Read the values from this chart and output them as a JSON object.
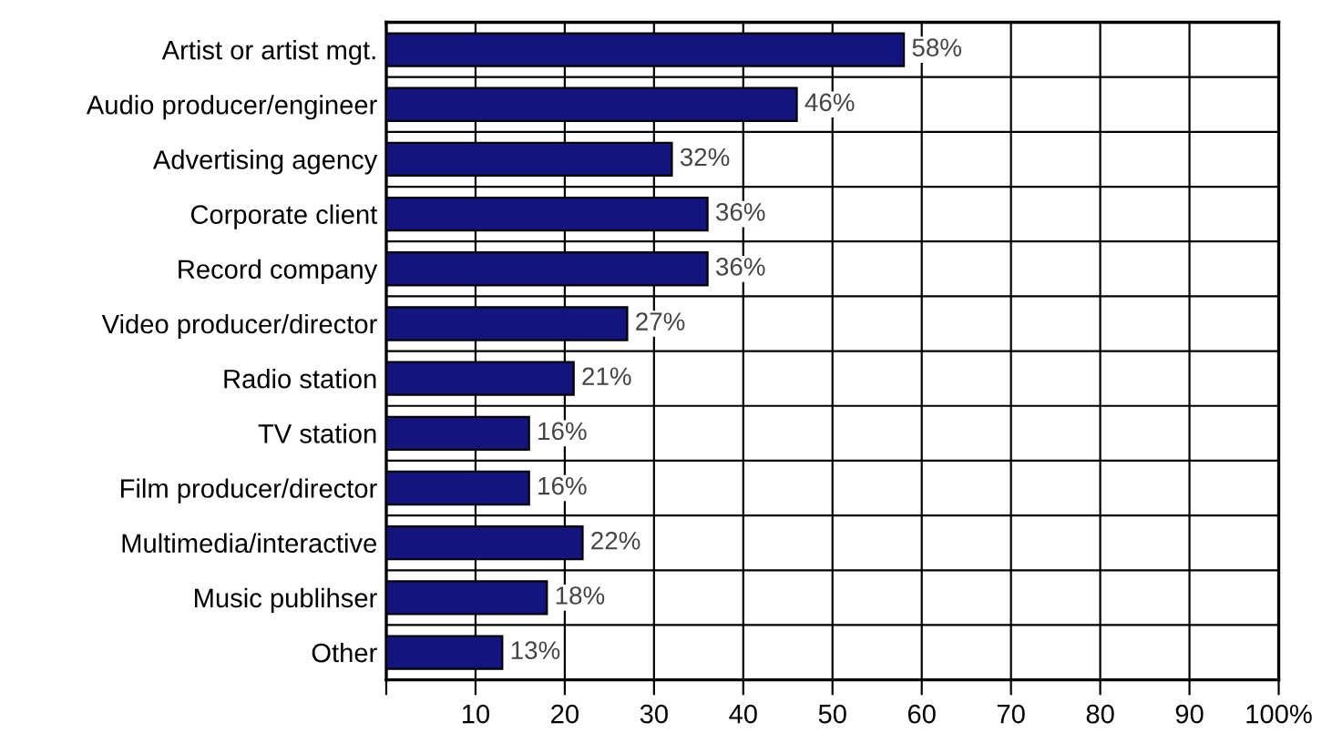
{
  "chart_data": {
    "type": "bar",
    "orientation": "horizontal",
    "categories": [
      "Artist or artist mgt.",
      "Audio producer/engineer",
      "Advertising agency",
      "Corporate client",
      "Record company",
      "Video producer/director",
      "Radio station",
      "TV station",
      "Film producer/director",
      "Multimedia/interactive",
      "Music publihser",
      "Other"
    ],
    "values": [
      58,
      46,
      32,
      36,
      36,
      27,
      21,
      16,
      16,
      22,
      18,
      13
    ],
    "value_labels": [
      "58%",
      "46%",
      "32%",
      "36%",
      "36%",
      "27%",
      "21%",
      "16%",
      "16%",
      "22%",
      "18%",
      "13%"
    ],
    "color": "#14147e",
    "xlim": [
      0,
      100
    ],
    "xticks": [
      {
        "value": 0,
        "label": null
      },
      10,
      20,
      30,
      40,
      50,
      60,
      70,
      80,
      90,
      {
        "value": 100,
        "label": "100%"
      }
    ],
    "grid": true
  }
}
